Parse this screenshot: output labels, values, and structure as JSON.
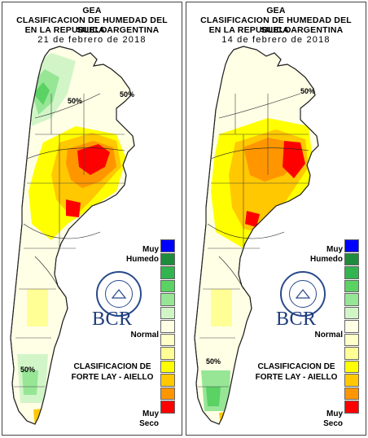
{
  "panels": [
    {
      "id": "left",
      "org": "GEA",
      "title_line1": "CLASIFICACION DE HUMEDAD DEL SUELO",
      "title_line2": "EN LA REPUBLICA ARGENTINA",
      "date": "21 de febrero de 2018",
      "contour_labels": [
        "50%",
        "50%",
        "50%"
      ]
    },
    {
      "id": "right",
      "org": "GEA",
      "title_line1": "CLASIFICACION DE HUMEDAD DEL SUELO",
      "title_line2": "EN LA REPUBLICA ARGENTINA",
      "date": "14 de febrero de 2018",
      "contour_labels": [
        "50%",
        "50%"
      ]
    }
  ],
  "legend": {
    "top_label_1": "Muy",
    "top_label_2": "Humedo",
    "mid_label": "Normal",
    "bottom_label_1": "Muy",
    "bottom_label_2": "Seco",
    "colors": [
      "#0000ff",
      "#1e8c3c",
      "#32b450",
      "#5ad264",
      "#96e696",
      "#d2f5c8",
      "#ffffe6",
      "#ffffc8",
      "#ffff96",
      "#ffff00",
      "#ffc800",
      "#ff9600",
      "#ff0000"
    ]
  },
  "brand": {
    "name": "BCR",
    "seal_text": "BOLSA DE COMERCIO DE ROSARIO"
  },
  "method": {
    "line1": "CLASIFICACION DE",
    "line2": "FORTE LAY - AIELLO"
  }
}
